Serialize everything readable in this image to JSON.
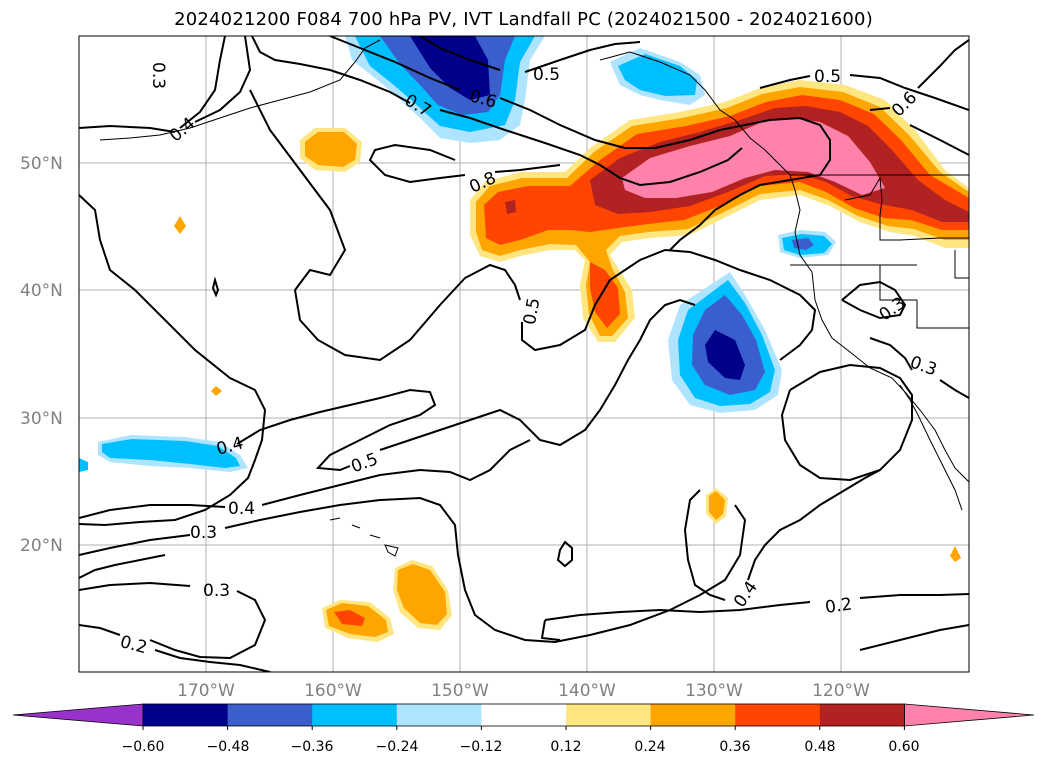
{
  "title": "2024021200 F084 700 hPa PV, IVT Landfall PC (2024021500 - 2024021600)",
  "lat_labels": [
    "50°N",
    "40°N",
    "30°N",
    "20°N"
  ],
  "lon_labels": [
    "170°W",
    "160°W",
    "150°W",
    "140°W",
    "130°W",
    "120°W"
  ],
  "contour_labels": [
    "0.3",
    "0.4",
    "0.7",
    "0.6",
    "0.5",
    "0.5",
    "0.6",
    "0.8",
    "0.5",
    "0.3",
    "0.3",
    "0.4",
    "0.5",
    "0.4",
    "0.3",
    "0.3",
    "0.2",
    "0.4",
    "0.2"
  ],
  "colorbar": {
    "tick_labels": [
      "−0.60",
      "−0.48",
      "−0.36",
      "−0.24",
      "−0.12",
      "0.12",
      "0.24",
      "0.36",
      "0.48",
      "0.60"
    ],
    "colors": [
      "#9932cc",
      "#00008b",
      "#3a5fcd",
      "#00bfff",
      "#aee4ff",
      "#ffffff",
      "#ffe680",
      "#ffa500",
      "#ff4500",
      "#b22222",
      "#ff82ab"
    ]
  }
}
